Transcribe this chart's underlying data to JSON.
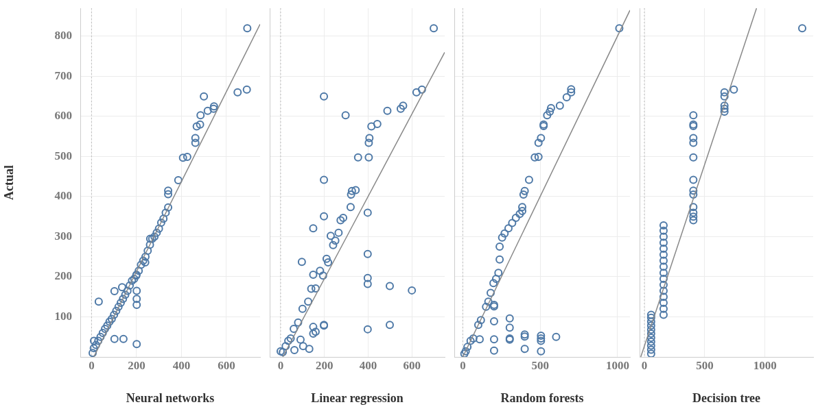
{
  "chart_data": [
    {
      "type": "scatter",
      "xlabel": "Neural networks",
      "ylabel": "Actual",
      "xlim": [
        -50,
        750
      ],
      "xticks": [
        0,
        200,
        400,
        600
      ],
      "ylim": [
        0,
        870
      ],
      "yticks": [
        100,
        200,
        300,
        400,
        500,
        600,
        700,
        800
      ],
      "grid": true,
      "ref_lines": [
        {
          "axis": "x",
          "value": 0,
          "color": "#bbbbbb",
          "line_style": "dotted"
        }
      ],
      "series": [
        {
          "type": "scatter",
          "color": "#4e79a7",
          "marker": "circle",
          "x": [
            693,
            650,
            691,
            500,
            545,
            543,
            517,
            485,
            483,
            468,
            462,
            462,
            407,
            426,
            386,
            341,
            341,
            341,
            330,
            320,
            310,
            300,
            290,
            280,
            270,
            261,
            260,
            250,
            240,
            239,
            230,
            220,
            210,
            200,
            199,
            201,
            201,
            201,
            201,
            190,
            180,
            170,
            160,
            150,
            142,
            140,
            136,
            130,
            120,
            110,
            102,
            102,
            100,
            90,
            80,
            70,
            60,
            50,
            40,
            32,
            30,
            20,
            11,
            10,
            5
          ],
          "values": [
            820,
            660,
            667,
            650,
            625,
            619,
            614,
            603,
            580,
            575,
            546,
            534,
            497,
            499,
            441,
            415,
            406,
            373,
            360,
            345,
            335,
            320,
            310,
            300,
            295,
            295,
            280,
            265,
            250,
            236,
            240,
            230,
            215,
            205,
            203,
            130,
            145,
            165,
            32,
            195,
            190,
            178,
            165,
            155,
            45,
            145,
            174,
            135,
            125,
            115,
            164,
            45,
            105,
            95,
            88,
            78,
            70,
            60,
            50,
            138,
            40,
            30,
            40,
            22,
            10
          ]
        },
        {
          "type": "line",
          "color": "#888888",
          "marker": "none",
          "x": [
            10,
            750
          ],
          "values": [
            0,
            830
          ]
        }
      ]
    },
    {
      "type": "scatter",
      "xlabel": "Linear regression",
      "xlim": [
        -50,
        750
      ],
      "xticks": [
        0,
        200,
        400,
        600
      ],
      "ylim": [
        0,
        870
      ],
      "yticks": [
        100,
        200,
        300,
        400,
        500,
        600,
        700,
        800
      ],
      "grid": true,
      "tick_labels": "x",
      "ref_lines": [
        {
          "axis": "x",
          "value": 0,
          "color": "#bbbbbb",
          "line_style": "dotted"
        }
      ],
      "series": [
        {
          "type": "scatter",
          "color": "#4e79a7",
          "marker": "circle",
          "x": [
            700,
            621,
            646,
            198,
            297,
            488,
            549,
            560,
            415,
            442,
            406,
            403,
            354,
            403,
            198,
            326,
            322,
            343,
            320,
            398,
            198,
            149,
            398,
            97,
            149,
            398,
            398,
            499,
            600,
            198,
            198,
            149,
            149,
            160,
            398,
            499,
            131,
            103,
            91,
            0,
            63,
            286,
            274,
            240,
            229,
            217,
            194,
            160,
            126,
            80,
            46,
            23,
            10,
            35,
            60,
            100,
            140,
            180,
            210,
            250,
            265
          ],
          "values": [
            820,
            660,
            667,
            650,
            603,
            614,
            619,
            627,
            575,
            581,
            546,
            534,
            498,
            498,
            442,
            414,
            405,
            416,
            374,
            360,
            351,
            321,
            257,
            237,
            205,
            197,
            182,
            177,
            166,
            80,
            78,
            75,
            58,
            63,
            69,
            80,
            20,
            27,
            43,
            14,
            17,
            347,
            341,
            279,
            302,
            236,
            203,
            171,
            138,
            86,
            46,
            27,
            12,
            40,
            70,
            120,
            170,
            215,
            245,
            290,
            310
          ]
        },
        {
          "type": "line",
          "color": "#888888",
          "marker": "none",
          "x": [
            10,
            750
          ],
          "values": [
            0,
            760
          ]
        }
      ]
    },
    {
      "type": "scatter",
      "xlabel": "Random forests",
      "xlim": [
        -55,
        1080
      ],
      "xticks": [
        0,
        500,
        1000
      ],
      "ylim": [
        0,
        870
      ],
      "yticks": [
        100,
        200,
        300,
        400,
        500,
        600,
        700,
        800
      ],
      "grid": true,
      "tick_labels": "x",
      "ref_lines": [
        {
          "axis": "x",
          "value": 0,
          "color": "#bbbbbb",
          "line_style": "dotted"
        }
      ],
      "series": [
        {
          "type": "scatter",
          "color": "#4e79a7",
          "marker": "circle",
          "x": [
            1011,
            700,
            700,
            671,
            627,
            570,
            562,
            545,
            522,
            522,
            505,
            489,
            465,
            489,
            428,
            400,
            392,
            384,
            384,
            368,
            343,
            319,
            295,
            270,
            254,
            238,
            238,
            230,
            198,
            165,
            117,
            68,
            19,
            202,
            202,
            202,
            202,
            202,
            109,
            303,
            303,
            303,
            303,
            400,
            400,
            400,
            505,
            505,
            505,
            505,
            603,
            150,
            100,
            50,
            30,
            10,
            180,
            215
          ],
          "values": [
            820,
            668,
            660,
            648,
            627,
            621,
            612,
            603,
            580,
            576,
            546,
            534,
            498,
            499,
            442,
            414,
            405,
            374,
            364,
            357,
            347,
            334,
            321,
            308,
            298,
            275,
            243,
            210,
            184,
            138,
            92,
            46,
            14,
            130,
            126,
            89,
            44,
            16,
            44,
            96,
            73,
            46,
            43,
            56,
            51,
            20,
            53,
            46,
            40,
            14,
            50,
            125,
            80,
            40,
            25,
            8,
            160,
            195
          ]
        },
        {
          "type": "line",
          "color": "#888888",
          "marker": "none",
          "x": [
            0,
            1080
          ],
          "values": [
            0,
            865
          ]
        }
      ]
    },
    {
      "type": "scatter",
      "xlabel": "Decision tree",
      "xlim": [
        -40,
        1400
      ],
      "xticks": [
        0,
        500,
        1000
      ],
      "ylim": [
        0,
        870
      ],
      "yticks": [
        100,
        200,
        300,
        400,
        500,
        600,
        700,
        800
      ],
      "grid": true,
      "tick_labels": "x",
      "ref_lines": [
        {
          "axis": "x",
          "value": 0,
          "color": "#bbbbbb",
          "line_style": "dotted"
        }
      ],
      "series": [
        {
          "type": "scatter",
          "color": "#4e79a7",
          "marker": "circle",
          "x": [
            1309,
            742,
            664,
            664,
            664,
            664,
            664,
            406,
            406,
            406,
            406,
            406,
            406,
            406,
            406,
            406,
            406,
            406,
            406,
            406,
            159,
            159,
            159,
            159,
            159,
            159,
            159,
            159,
            159,
            159,
            159,
            159,
            159,
            159,
            159,
            159,
            56,
            56,
            56,
            56,
            56,
            56,
            56,
            56,
            56,
            56,
            56
          ],
          "values": [
            820,
            667,
            660,
            650,
            627,
            619,
            612,
            603,
            580,
            576,
            546,
            534,
            498,
            442,
            415,
            405,
            374,
            360,
            350,
            341,
            105,
            120,
            135,
            150,
            165,
            180,
            195,
            210,
            225,
            240,
            255,
            270,
            285,
            300,
            315,
            328,
            8,
            18,
            28,
            38,
            48,
            58,
            68,
            78,
            88,
            98,
            105
          ]
        },
        {
          "type": "line",
          "color": "#888888",
          "marker": "none",
          "x": [
            -30,
            930
          ],
          "values": [
            0,
            870
          ]
        }
      ]
    }
  ]
}
